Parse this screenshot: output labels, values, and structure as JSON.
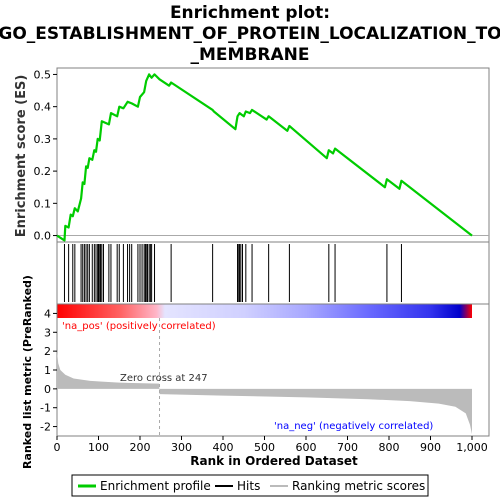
{
  "chart_data": {
    "type": "line",
    "title_lines": [
      "Enrichment plot:",
      "GO_ESTABLISHMENT_OF_PROTEIN_LOCALIZATION_TO",
      "_MEMBRANE"
    ],
    "es_panel": {
      "ylabel": "Enrichment score (ES)",
      "ylim": [
        -0.02,
        0.52
      ],
      "yticks": [
        "0.0",
        "0.1",
        "0.2",
        "0.3",
        "0.4",
        "0.5"
      ],
      "ytick_values": [
        0,
        0.1,
        0.2,
        0.3,
        0.4,
        0.5
      ],
      "series_color": "#00cc00",
      "profile": [
        [
          0,
          0
        ],
        [
          18,
          -0.015
        ],
        [
          20,
          0.03
        ],
        [
          28,
          0.025
        ],
        [
          33,
          0.065
        ],
        [
          38,
          0.06
        ],
        [
          43,
          0.085
        ],
        [
          50,
          0.075
        ],
        [
          58,
          0.115
        ],
        [
          62,
          0.165
        ],
        [
          66,
          0.16
        ],
        [
          70,
          0.215
        ],
        [
          74,
          0.21
        ],
        [
          78,
          0.24
        ],
        [
          85,
          0.235
        ],
        [
          90,
          0.265
        ],
        [
          94,
          0.26
        ],
        [
          98,
          0.3
        ],
        [
          103,
          0.295
        ],
        [
          108,
          0.355
        ],
        [
          125,
          0.345
        ],
        [
          130,
          0.38
        ],
        [
          145,
          0.37
        ],
        [
          150,
          0.4
        ],
        [
          160,
          0.395
        ],
        [
          170,
          0.415
        ],
        [
          180,
          0.41
        ],
        [
          195,
          0.4
        ],
        [
          200,
          0.43
        ],
        [
          210,
          0.445
        ],
        [
          215,
          0.48
        ],
        [
          222,
          0.5
        ],
        [
          228,
          0.49
        ],
        [
          235,
          0.5
        ],
        [
          247,
          0.485
        ],
        [
          270,
          0.465
        ],
        [
          275,
          0.475
        ],
        [
          375,
          0.39
        ],
        [
          378,
          0.385
        ],
        [
          430,
          0.33
        ],
        [
          435,
          0.37
        ],
        [
          440,
          0.38
        ],
        [
          445,
          0.375
        ],
        [
          450,
          0.37
        ],
        [
          455,
          0.385
        ],
        [
          465,
          0.38
        ],
        [
          470,
          0.39
        ],
        [
          505,
          0.36
        ],
        [
          510,
          0.37
        ],
        [
          555,
          0.325
        ],
        [
          560,
          0.34
        ],
        [
          650,
          0.24
        ],
        [
          655,
          0.265
        ],
        [
          665,
          0.255
        ],
        [
          670,
          0.27
        ],
        [
          790,
          0.15
        ],
        [
          795,
          0.175
        ],
        [
          825,
          0.145
        ],
        [
          830,
          0.17
        ],
        [
          1000,
          0
        ]
      ]
    },
    "hits": [
      18,
      28,
      38,
      43,
      58,
      62,
      66,
      70,
      74,
      78,
      85,
      90,
      94,
      98,
      100,
      103,
      105,
      108,
      112,
      125,
      130,
      145,
      150,
      160,
      170,
      175,
      180,
      195,
      200,
      205,
      210,
      213,
      215,
      218,
      222,
      225,
      228,
      235,
      275,
      375,
      435,
      438,
      440,
      443,
      447,
      455,
      470,
      510,
      560,
      655,
      670,
      795,
      830
    ],
    "metric_panel": {
      "ylabel": "Ranked list metric (PreRanked)",
      "ylim": [
        -2.5,
        4.5
      ],
      "yticks": [
        "4",
        "3",
        "2",
        "1",
        "0",
        "-1",
        "-2"
      ],
      "ytick_values": [
        4,
        3,
        2,
        1,
        0,
        -1,
        -2
      ],
      "zero_cross_label": "Zero cross at 247",
      "zero_cross_rank": 247,
      "pos_label": "'na_pos' (positively correlated)",
      "neg_label": "'na_neg' (negatively correlated)",
      "curve": [
        [
          0,
          2.0
        ],
        [
          3,
          1.35
        ],
        [
          8,
          1.0
        ],
        [
          20,
          0.75
        ],
        [
          40,
          0.55
        ],
        [
          80,
          0.42
        ],
        [
          150,
          0.33
        ],
        [
          246,
          0.28
        ],
        [
          247,
          -0.28
        ],
        [
          400,
          -0.36
        ],
        [
          600,
          -0.45
        ],
        [
          750,
          -0.55
        ],
        [
          850,
          -0.65
        ],
        [
          920,
          -0.78
        ],
        [
          960,
          -0.95
        ],
        [
          985,
          -1.3
        ],
        [
          995,
          -1.9
        ],
        [
          1000,
          -2.4
        ]
      ]
    },
    "xlabel": "Rank in Ordered Dataset",
    "xlim": [
      0,
      1000
    ],
    "xticks": [
      "0",
      "100",
      "200",
      "300",
      "400",
      "500",
      "600",
      "700",
      "800",
      "900",
      "1,000"
    ],
    "xtick_values": [
      0,
      100,
      200,
      300,
      400,
      500,
      600,
      700,
      800,
      900,
      1000
    ],
    "legend": [
      {
        "label": "Enrichment profile",
        "color": "#00cc00"
      },
      {
        "label": "Hits",
        "color": "#000000"
      },
      {
        "label": "Ranking metric scores",
        "color": "#bbbbbb"
      }
    ],
    "colors": {
      "pos_text": "#ff0000",
      "neg_text": "#0000ff",
      "metric_fill": "#bbbbbb",
      "frame": "#808080"
    }
  }
}
